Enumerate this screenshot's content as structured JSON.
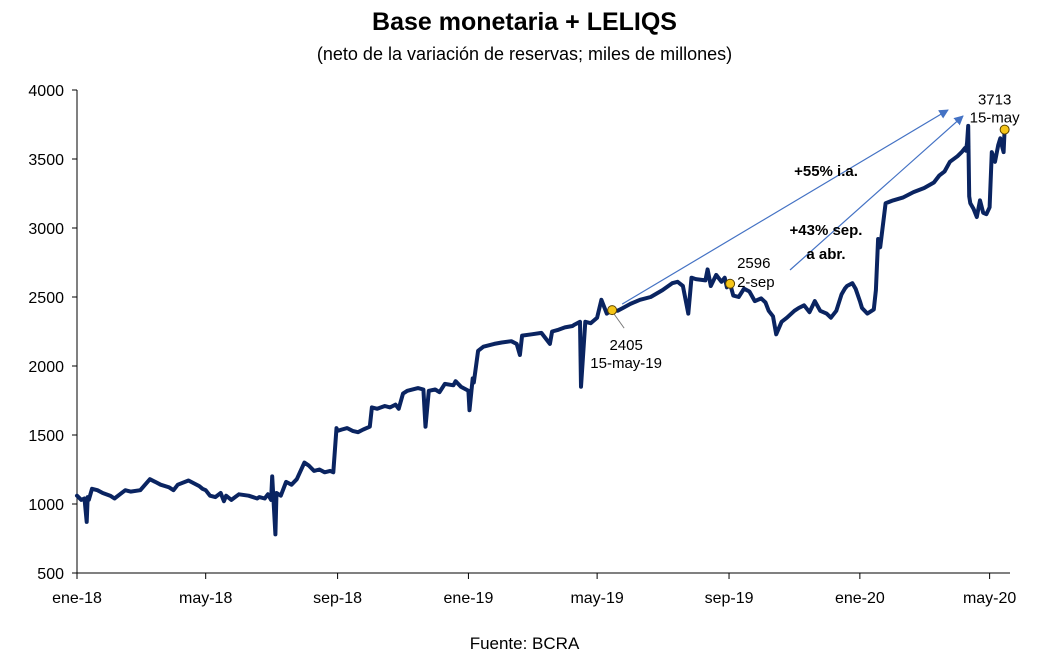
{
  "chart_data": {
    "type": "line",
    "title": "Base monetaria + LELIQS",
    "subtitle": "(neto de la variación de reservas; miles de millones)",
    "source": "Fuente: BCRA",
    "y_ticks": [
      500,
      1000,
      1500,
      2000,
      2500,
      3000,
      3500,
      4000
    ],
    "ylim": [
      500,
      4000
    ],
    "x_ticks": [
      {
        "label": "ene-18",
        "date": "2018-01-01"
      },
      {
        "label": "may-18",
        "date": "2018-05-01"
      },
      {
        "label": "sep-18",
        "date": "2018-09-01"
      },
      {
        "label": "ene-19",
        "date": "2019-01-01"
      },
      {
        "label": "may-19",
        "date": "2019-05-01"
      },
      {
        "label": "sep-19",
        "date": "2019-09-01"
      },
      {
        "label": "ene-20",
        "date": "2020-01-01"
      },
      {
        "label": "may-20",
        "date": "2020-05-01"
      }
    ],
    "xlim": [
      "2018-01-01",
      "2020-05-20"
    ],
    "series": [
      {
        "color": "#0a2461",
        "x": [
          "2018-01-01",
          "2018-01-05",
          "2018-01-08",
          "2018-01-10",
          "2018-01-11",
          "2018-01-12",
          "2018-01-15",
          "2018-01-20",
          "2018-01-25",
          "2018-02-01",
          "2018-02-05",
          "2018-02-10",
          "2018-02-15",
          "2018-02-20",
          "2018-03-01",
          "2018-03-10",
          "2018-03-15",
          "2018-03-20",
          "2018-03-28",
          "2018-04-01",
          "2018-04-05",
          "2018-04-15",
          "2018-04-25",
          "2018-04-28",
          "2018-05-01",
          "2018-05-05",
          "2018-05-10",
          "2018-05-15",
          "2018-05-18",
          "2018-05-20",
          "2018-05-25",
          "2018-06-01",
          "2018-06-10",
          "2018-06-18",
          "2018-06-20",
          "2018-06-25",
          "2018-06-28",
          "2018-07-01",
          "2018-07-02",
          "2018-07-05",
          "2018-07-06",
          "2018-07-10",
          "2018-07-15",
          "2018-07-20",
          "2018-07-25",
          "2018-08-01",
          "2018-08-05",
          "2018-08-10",
          "2018-08-15",
          "2018-08-20",
          "2018-08-25",
          "2018-08-28",
          "2018-08-31",
          "2018-09-01",
          "2018-09-05",
          "2018-09-10",
          "2018-09-15",
          "2018-09-20",
          "2018-09-25",
          "2018-10-01",
          "2018-10-03",
          "2018-10-08",
          "2018-10-15",
          "2018-10-20",
          "2018-10-25",
          "2018-10-28",
          "2018-11-01",
          "2018-11-05",
          "2018-11-15",
          "2018-11-20",
          "2018-11-22",
          "2018-11-25",
          "2018-12-01",
          "2018-12-05",
          "2018-12-10",
          "2018-12-18",
          "2018-12-20",
          "2018-12-25",
          "2019-01-01",
          "2019-01-02",
          "2019-01-05",
          "2019-01-06",
          "2019-01-10",
          "2019-01-15",
          "2019-01-25",
          "2019-02-01",
          "2019-02-10",
          "2019-02-15",
          "2019-02-18",
          "2019-02-20",
          "2019-03-01",
          "2019-03-10",
          "2019-03-18",
          "2019-03-20",
          "2019-03-25",
          "2019-04-01",
          "2019-04-08",
          "2019-04-10",
          "2019-04-15",
          "2019-04-16",
          "2019-04-20",
          "2019-04-25",
          "2019-04-28",
          "2019-05-01",
          "2019-05-05",
          "2019-05-10",
          "2019-05-15",
          "2019-05-20",
          "2019-05-25",
          "2019-06-01",
          "2019-06-10",
          "2019-06-20",
          "2019-07-01",
          "2019-07-10",
          "2019-07-15",
          "2019-07-20",
          "2019-07-25",
          "2019-07-28",
          "2019-08-01",
          "2019-08-10",
          "2019-08-12",
          "2019-08-15",
          "2019-08-20",
          "2019-08-25",
          "2019-08-28",
          "2019-08-30",
          "2019-09-02",
          "2019-09-05",
          "2019-09-10",
          "2019-09-15",
          "2019-09-20",
          "2019-09-25",
          "2019-10-01",
          "2019-10-05",
          "2019-10-08",
          "2019-10-12",
          "2019-10-15",
          "2019-10-20",
          "2019-10-25",
          "2019-11-01",
          "2019-11-05",
          "2019-11-10",
          "2019-11-15",
          "2019-11-20",
          "2019-11-25",
          "2019-12-01",
          "2019-12-05",
          "2019-12-10",
          "2019-12-15",
          "2019-12-18",
          "2019-12-20",
          "2019-12-25",
          "2019-12-28",
          "2020-01-01",
          "2020-01-03",
          "2020-01-08",
          "2020-01-12",
          "2020-01-14",
          "2020-01-16",
          "2020-01-18",
          "2020-01-20",
          "2020-01-25",
          "2020-02-01",
          "2020-02-10",
          "2020-02-20",
          "2020-03-01",
          "2020-03-10",
          "2020-03-15",
          "2020-03-20",
          "2020-03-25",
          "2020-04-01",
          "2020-04-05",
          "2020-04-08",
          "2020-04-09",
          "2020-04-10",
          "2020-04-11",
          "2020-04-12",
          "2020-04-13",
          "2020-04-16",
          "2020-04-19",
          "2020-04-22",
          "2020-04-25",
          "2020-04-28",
          "2020-05-01",
          "2020-05-03",
          "2020-05-06",
          "2020-05-09",
          "2020-05-11",
          "2020-05-13",
          "2020-05-14",
          "2020-05-15"
        ],
        "y": [
          1060,
          1030,
          1040,
          870,
          1050,
          1030,
          1110,
          1100,
          1080,
          1060,
          1040,
          1070,
          1100,
          1090,
          1100,
          1180,
          1160,
          1140,
          1120,
          1100,
          1140,
          1170,
          1130,
          1110,
          1100,
          1060,
          1050,
          1080,
          1020,
          1060,
          1030,
          1070,
          1060,
          1040,
          1050,
          1040,
          1070,
          1030,
          1200,
          780,
          1080,
          1060,
          1160,
          1140,
          1180,
          1300,
          1280,
          1240,
          1250,
          1230,
          1240,
          1230,
          1550,
          1530,
          1540,
          1550,
          1530,
          1520,
          1540,
          1560,
          1700,
          1690,
          1710,
          1700,
          1720,
          1690,
          1800,
          1820,
          1840,
          1830,
          1560,
          1820,
          1830,
          1810,
          1870,
          1860,
          1890,
          1850,
          1820,
          1680,
          1910,
          1880,
          2110,
          2140,
          2160,
          2170,
          2180,
          2160,
          2080,
          2220,
          2230,
          2240,
          2160,
          2250,
          2260,
          2280,
          2290,
          2300,
          2320,
          1850,
          2320,
          2310,
          2330,
          2350,
          2480,
          2380,
          2405,
          2400,
          2420,
          2450,
          2480,
          2500,
          2550,
          2600,
          2610,
          2580,
          2380,
          2640,
          2630,
          2620,
          2700,
          2580,
          2660,
          2610,
          2640,
          2570,
          2596,
          2510,
          2500,
          2560,
          2540,
          2470,
          2490,
          2460,
          2400,
          2360,
          2230,
          2320,
          2350,
          2400,
          2420,
          2440,
          2390,
          2470,
          2400,
          2380,
          2350,
          2400,
          2520,
          2560,
          2580,
          2600,
          2560,
          2470,
          2420,
          2380,
          2400,
          2410,
          2550,
          2920,
          2860,
          3180,
          3200,
          3220,
          3260,
          3290,
          3330,
          3380,
          3410,
          3480,
          3520,
          3550,
          3580,
          3560,
          3620,
          3740,
          3230,
          3180,
          3140,
          3080,
          3200,
          3110,
          3100,
          3150,
          3550,
          3480,
          3600,
          3650,
          3580,
          3550,
          3713
        ]
      }
    ],
    "annotations": {
      "point_1": {
        "date": "2019-05-15",
        "value": 2405,
        "value_label": "2405",
        "date_label": "15-may-19"
      },
      "point_2": {
        "date": "2019-09-02",
        "value": 2596,
        "value_label": "2596",
        "date_label": "2-sep"
      },
      "point_3": {
        "date": "2020-05-15",
        "value": 3713,
        "value_label": "3713",
        "date_label": "15-may"
      },
      "growth_yoy": "+55% i.a.",
      "growth_sep_line1": "+43% sep.",
      "growth_sep_line2": "a abr."
    },
    "colors": {
      "line": "#0a2461",
      "marker": "#f5c518",
      "arrow": "#4472c4",
      "growth_sep_text": "#2e5597"
    }
  }
}
